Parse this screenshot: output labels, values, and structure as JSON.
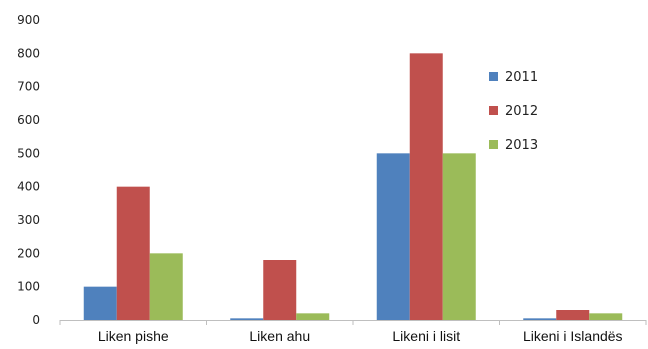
{
  "chart_data": {
    "type": "bar",
    "categories": [
      "Liken pishe",
      "Liken ahu",
      "Likeni i lisit",
      "Likeni i Islandës"
    ],
    "series": [
      {
        "name": "2011",
        "color": "#4f81bd",
        "values": [
          100,
          5,
          500,
          5
        ]
      },
      {
        "name": "2012",
        "color": "#c0504d",
        "values": [
          400,
          180,
          800,
          30
        ]
      },
      {
        "name": "2013",
        "color": "#9bbb59",
        "values": [
          200,
          20,
          500,
          20
        ]
      }
    ],
    "ylim": [
      0,
      900
    ],
    "yticks": [
      0,
      100,
      200,
      300,
      400,
      500,
      600,
      700,
      800,
      900
    ],
    "legend_position": "right",
    "grid": false,
    "title": "",
    "xlabel": "",
    "ylabel": ""
  }
}
